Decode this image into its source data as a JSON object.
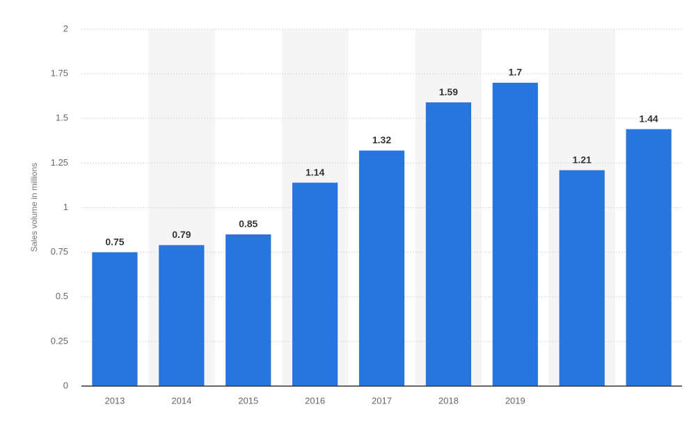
{
  "chart_data": {
    "type": "bar",
    "y_label": "Sales volume in millions",
    "categories": [
      "2013",
      "2014",
      "2015",
      "2016",
      "2017",
      "2018",
      "2019",
      null,
      null
    ],
    "values": [
      0.75,
      0.79,
      0.85,
      1.14,
      1.32,
      1.59,
      1.7,
      1.21,
      1.44
    ],
    "color": "#2876dd",
    "ylim": [
      0,
      2
    ],
    "yticks": [
      0,
      0.25,
      0.5,
      0.75,
      1,
      1.25,
      1.5,
      1.75,
      2
    ],
    "grid": true
  }
}
